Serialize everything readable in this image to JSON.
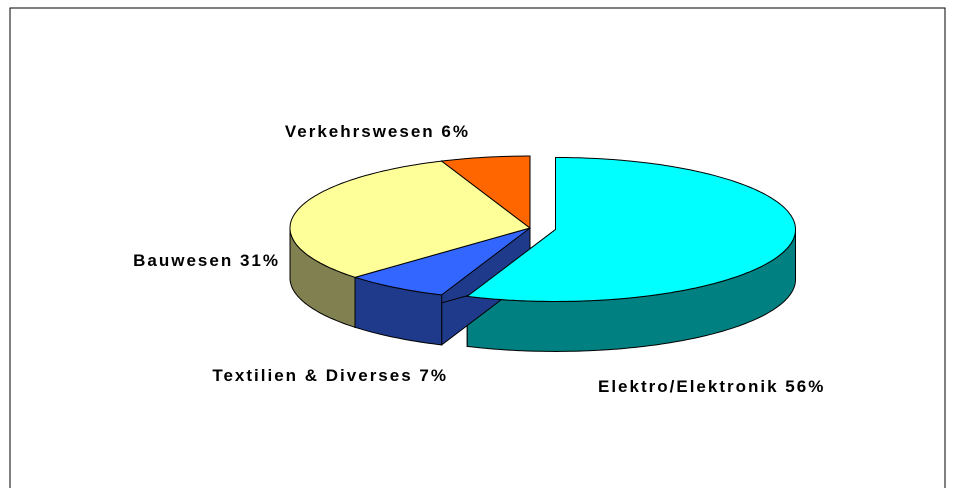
{
  "chart_data": {
    "type": "pie3d",
    "categories": [
      "Elektro/Elektronik",
      "Textilien & Diverses",
      "Bauwesen",
      "Verkehrswesen"
    ],
    "values": [
      56,
      7,
      31,
      6
    ],
    "value_labels": [
      "56%",
      "7%",
      "31%",
      "6%"
    ],
    "colors": [
      "#00ffff",
      "#3366ff",
      "#ffff99",
      "#ff6600"
    ],
    "side_colors": [
      "#008080",
      "#1f3a8a",
      "#808050",
      "#993300"
    ],
    "exploded": [
      true,
      false,
      false,
      false
    ]
  }
}
